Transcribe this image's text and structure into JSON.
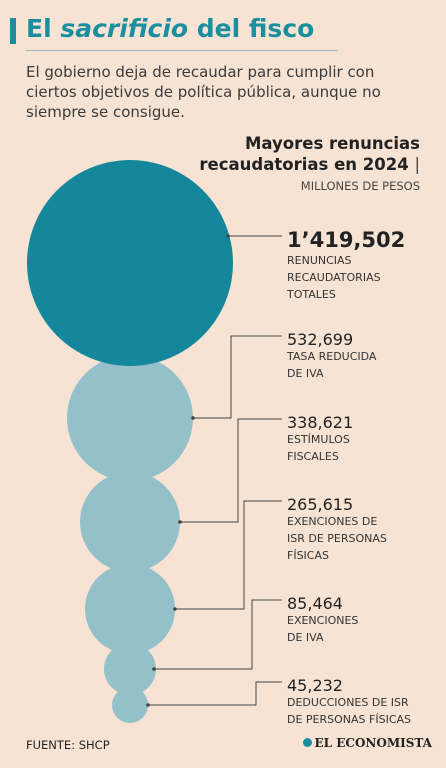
{
  "header": {
    "title_prefix": "El ",
    "title_emphasis": "sacrificio",
    "title_suffix": " del fisco",
    "subtitle": "El gobierno deja de recaudar para cumplir con ciertos objetivos de política pública, aunque no siempre se consigue."
  },
  "chart_data": {
    "type": "bubble",
    "title_line1": "Mayores renuncias",
    "title_line2": "recaudatorias en 2024",
    "title_separator": "|",
    "units": "MILLONES DE PESOS",
    "colors": {
      "total": "#14889a",
      "items": "#94c0c9",
      "leader": "#444444",
      "accent": "#1b8fa0"
    },
    "series": [
      {
        "value": 1419502,
        "value_label": "1’419,502",
        "label_lines": [
          "RENUNCIAS",
          "RECAUDATORIAS",
          "TOTALES"
        ],
        "highlight": true
      },
      {
        "value": 532699,
        "value_label": "532,699",
        "label_lines": [
          "TASA REDUCIDA",
          "DE IVA"
        ]
      },
      {
        "value": 338621,
        "value_label": "338,621",
        "label_lines": [
          "ESTÍMULOS",
          "FISCALES"
        ]
      },
      {
        "value": 265615,
        "value_label": "265,615",
        "label_lines": [
          "EXENCIONES DE",
          "ISR DE PERSONAS",
          "FÍSICAS"
        ]
      },
      {
        "value": 85464,
        "value_label": "85,464",
        "label_lines": [
          "EXENCIONES",
          "DE IVA"
        ]
      },
      {
        "value": 45232,
        "value_label": "45,232",
        "label_lines": [
          "DEDUCCIONES DE ISR",
          "DE PERSONAS FÍSICAS"
        ]
      }
    ]
  },
  "footer": {
    "source": "FUENTE: SHCP",
    "brand": "EL ECONOMISTA",
    "brand_icon": "economista-logo-icon"
  }
}
